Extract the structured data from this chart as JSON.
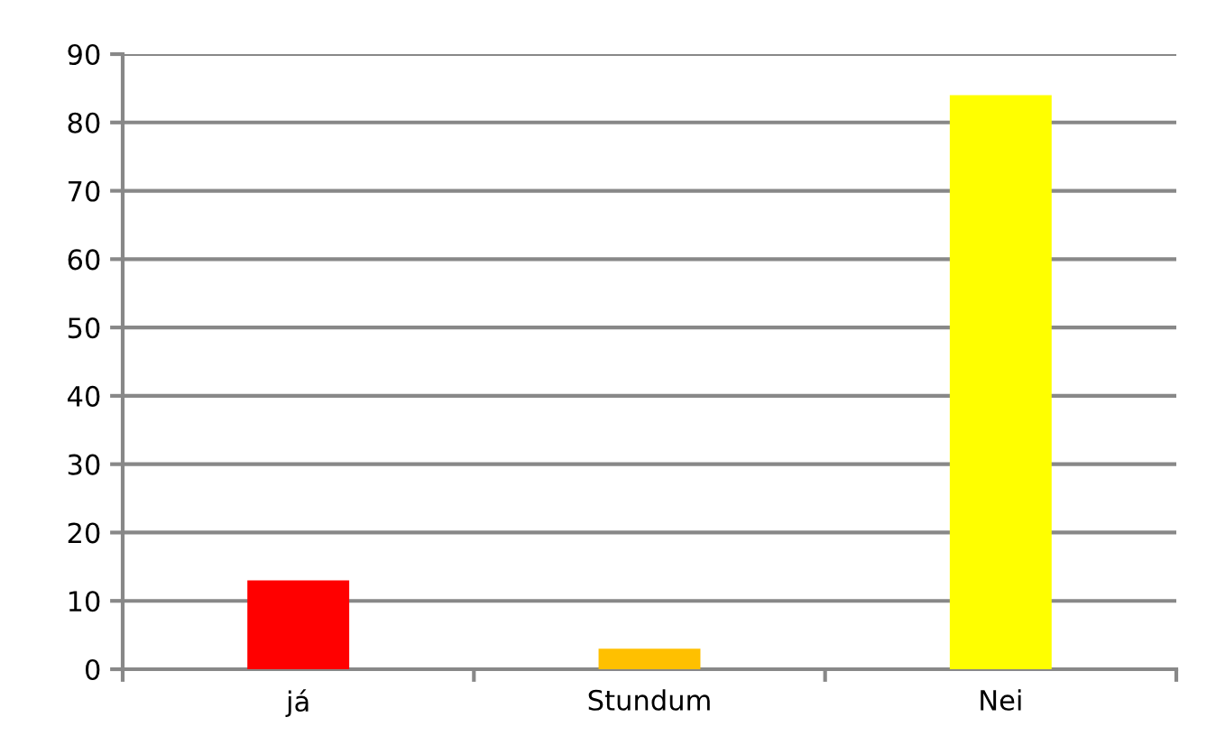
{
  "chart_data": {
    "type": "bar",
    "categories": [
      "já",
      "Stundum",
      "Nei"
    ],
    "values": [
      13,
      3,
      84
    ],
    "colors": [
      "#ff0000",
      "#ffc000",
      "#ffff00"
    ],
    "ylim": [
      0,
      90
    ],
    "yticks": [
      0,
      10,
      20,
      30,
      40,
      50,
      60,
      70,
      80,
      90
    ],
    "grid": "y"
  }
}
